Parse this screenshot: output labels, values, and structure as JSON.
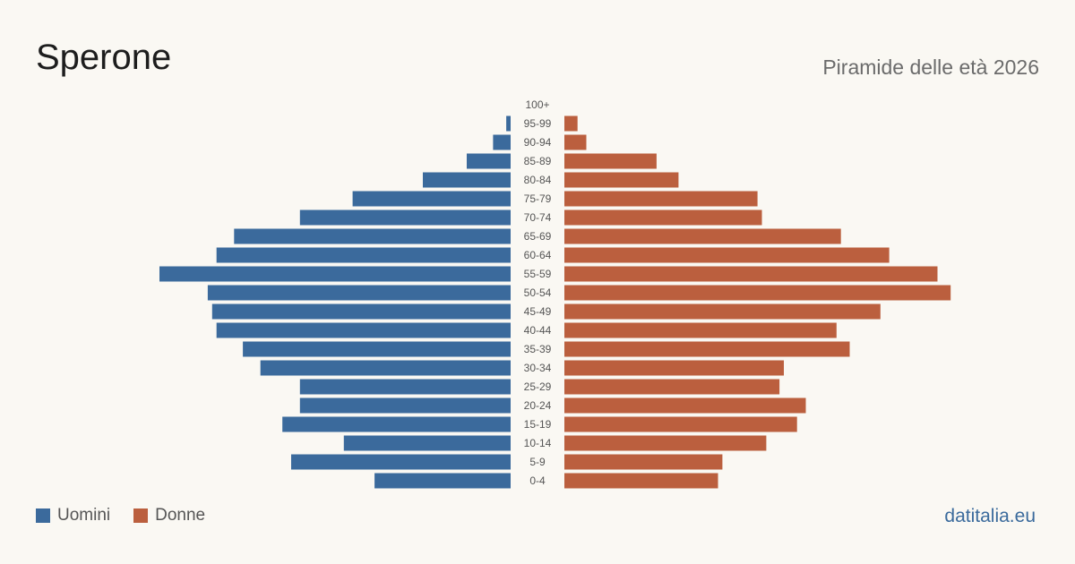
{
  "header": {
    "title": "Sperone",
    "subtitle": "Piramide delle età 2026"
  },
  "legend": {
    "men_label": "Uomini",
    "women_label": "Donne"
  },
  "brand": "datitalia.eu",
  "colors": {
    "men": "#3b6a9c",
    "women": "#bb5f3e",
    "background": "#faf8f3",
    "label": "#555555"
  },
  "chart_data": {
    "type": "bar",
    "orientation": "horizontal-pyramid",
    "title": "Sperone",
    "subtitle": "Piramide delle età 2026",
    "categories": [
      "100+",
      "95-99",
      "90-94",
      "85-89",
      "80-84",
      "75-79",
      "70-74",
      "65-69",
      "60-64",
      "55-59",
      "50-54",
      "45-49",
      "40-44",
      "35-39",
      "30-34",
      "25-29",
      "20-24",
      "15-19",
      "10-14",
      "5-9",
      "0-4"
    ],
    "series": [
      {
        "name": "Uomini",
        "values": [
          0,
          1,
          4,
          10,
          20,
          36,
          48,
          63,
          67,
          80,
          69,
          68,
          67,
          61,
          57,
          48,
          48,
          52,
          38,
          50,
          31
        ]
      },
      {
        "name": "Donne",
        "values": [
          0,
          3,
          5,
          21,
          26,
          44,
          45,
          63,
          74,
          85,
          88,
          72,
          62,
          65,
          50,
          49,
          55,
          53,
          46,
          36,
          35
        ]
      }
    ],
    "legend": "bottom-left",
    "grid": false
  }
}
